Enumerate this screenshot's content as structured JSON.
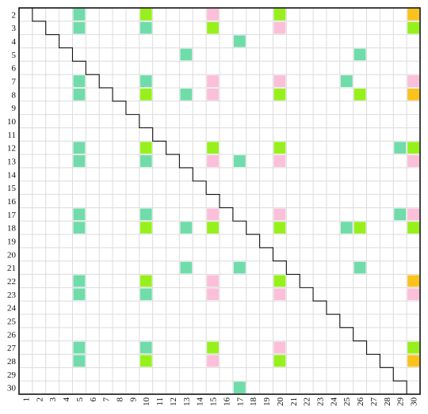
{
  "chart_data": {
    "type": "heatmap",
    "title": "",
    "xlabel": "",
    "ylabel": "",
    "x_ticks": [
      "1",
      "2",
      "3",
      "4",
      "5",
      "6",
      "7",
      "8",
      "9",
      "10",
      "11",
      "12",
      "13",
      "14",
      "15",
      "16",
      "17",
      "18",
      "19",
      "20",
      "21",
      "22",
      "23",
      "24",
      "25",
      "26",
      "27",
      "28",
      "29",
      "30"
    ],
    "y_ticks": [
      "2",
      "3",
      "4",
      "5",
      "6",
      "7",
      "8",
      "9",
      "10",
      "11",
      "12",
      "13",
      "14",
      "15",
      "16",
      "17",
      "18",
      "19",
      "20",
      "21",
      "22",
      "23",
      "24",
      "25",
      "26",
      "27",
      "28",
      "29",
      "30"
    ],
    "grid": true,
    "staircase_diagonal": true,
    "colors": {
      "teal": "#6fdcaa",
      "green": "#97f01c",
      "pink": "#fbbfd9",
      "orange": "#fbc21e",
      "grid": "#dcdcdc",
      "frame": "#111111"
    },
    "cells": [
      {
        "row": "2",
        "col": "5",
        "color": "teal"
      },
      {
        "row": "2",
        "col": "10",
        "color": "green"
      },
      {
        "row": "2",
        "col": "15",
        "color": "pink"
      },
      {
        "row": "2",
        "col": "20",
        "color": "green"
      },
      {
        "row": "2",
        "col": "30",
        "color": "orange"
      },
      {
        "row": "3",
        "col": "5",
        "color": "teal"
      },
      {
        "row": "3",
        "col": "10",
        "color": "teal"
      },
      {
        "row": "3",
        "col": "15",
        "color": "green"
      },
      {
        "row": "3",
        "col": "20",
        "color": "pink"
      },
      {
        "row": "3",
        "col": "30",
        "color": "green"
      },
      {
        "row": "4",
        "col": "17",
        "color": "teal"
      },
      {
        "row": "5",
        "col": "13",
        "color": "teal"
      },
      {
        "row": "5",
        "col": "26",
        "color": "teal"
      },
      {
        "row": "7",
        "col": "5",
        "color": "teal"
      },
      {
        "row": "7",
        "col": "10",
        "color": "teal"
      },
      {
        "row": "7",
        "col": "15",
        "color": "pink"
      },
      {
        "row": "7",
        "col": "20",
        "color": "pink"
      },
      {
        "row": "7",
        "col": "25",
        "color": "teal"
      },
      {
        "row": "7",
        "col": "30",
        "color": "pink"
      },
      {
        "row": "8",
        "col": "5",
        "color": "teal"
      },
      {
        "row": "8",
        "col": "10",
        "color": "green"
      },
      {
        "row": "8",
        "col": "13",
        "color": "teal"
      },
      {
        "row": "8",
        "col": "15",
        "color": "pink"
      },
      {
        "row": "8",
        "col": "20",
        "color": "green"
      },
      {
        "row": "8",
        "col": "26",
        "color": "green"
      },
      {
        "row": "8",
        "col": "30",
        "color": "orange"
      },
      {
        "row": "12",
        "col": "5",
        "color": "teal"
      },
      {
        "row": "12",
        "col": "10",
        "color": "green"
      },
      {
        "row": "12",
        "col": "15",
        "color": "green"
      },
      {
        "row": "12",
        "col": "20",
        "color": "green"
      },
      {
        "row": "12",
        "col": "29",
        "color": "teal"
      },
      {
        "row": "12",
        "col": "30",
        "color": "green"
      },
      {
        "row": "13",
        "col": "5",
        "color": "teal"
      },
      {
        "row": "13",
        "col": "10",
        "color": "teal"
      },
      {
        "row": "13",
        "col": "15",
        "color": "pink"
      },
      {
        "row": "13",
        "col": "17",
        "color": "teal"
      },
      {
        "row": "13",
        "col": "20",
        "color": "pink"
      },
      {
        "row": "13",
        "col": "30",
        "color": "pink"
      },
      {
        "row": "17",
        "col": "5",
        "color": "teal"
      },
      {
        "row": "17",
        "col": "10",
        "color": "teal"
      },
      {
        "row": "17",
        "col": "15",
        "color": "pink"
      },
      {
        "row": "17",
        "col": "20",
        "color": "pink"
      },
      {
        "row": "17",
        "col": "29",
        "color": "teal"
      },
      {
        "row": "17",
        "col": "30",
        "color": "pink"
      },
      {
        "row": "18",
        "col": "5",
        "color": "teal"
      },
      {
        "row": "18",
        "col": "10",
        "color": "green"
      },
      {
        "row": "18",
        "col": "13",
        "color": "teal"
      },
      {
        "row": "18",
        "col": "15",
        "color": "green"
      },
      {
        "row": "18",
        "col": "20",
        "color": "green"
      },
      {
        "row": "18",
        "col": "25",
        "color": "teal"
      },
      {
        "row": "18",
        "col": "26",
        "color": "green"
      },
      {
        "row": "18",
        "col": "30",
        "color": "green"
      },
      {
        "row": "21",
        "col": "13",
        "color": "teal"
      },
      {
        "row": "21",
        "col": "17",
        "color": "teal"
      },
      {
        "row": "21",
        "col": "26",
        "color": "teal"
      },
      {
        "row": "22",
        "col": "5",
        "color": "teal"
      },
      {
        "row": "22",
        "col": "10",
        "color": "green"
      },
      {
        "row": "22",
        "col": "15",
        "color": "pink"
      },
      {
        "row": "22",
        "col": "20",
        "color": "green"
      },
      {
        "row": "22",
        "col": "30",
        "color": "orange"
      },
      {
        "row": "23",
        "col": "5",
        "color": "teal"
      },
      {
        "row": "23",
        "col": "10",
        "color": "teal"
      },
      {
        "row": "23",
        "col": "15",
        "color": "pink"
      },
      {
        "row": "23",
        "col": "20",
        "color": "pink"
      },
      {
        "row": "23",
        "col": "30",
        "color": "pink"
      },
      {
        "row": "27",
        "col": "5",
        "color": "teal"
      },
      {
        "row": "27",
        "col": "10",
        "color": "teal"
      },
      {
        "row": "27",
        "col": "15",
        "color": "green"
      },
      {
        "row": "27",
        "col": "20",
        "color": "pink"
      },
      {
        "row": "27",
        "col": "30",
        "color": "green"
      },
      {
        "row": "28",
        "col": "5",
        "color": "teal"
      },
      {
        "row": "28",
        "col": "10",
        "color": "green"
      },
      {
        "row": "28",
        "col": "15",
        "color": "pink"
      },
      {
        "row": "28",
        "col": "20",
        "color": "green"
      },
      {
        "row": "28",
        "col": "30",
        "color": "orange"
      },
      {
        "row": "30",
        "col": "17",
        "color": "teal"
      }
    ]
  }
}
